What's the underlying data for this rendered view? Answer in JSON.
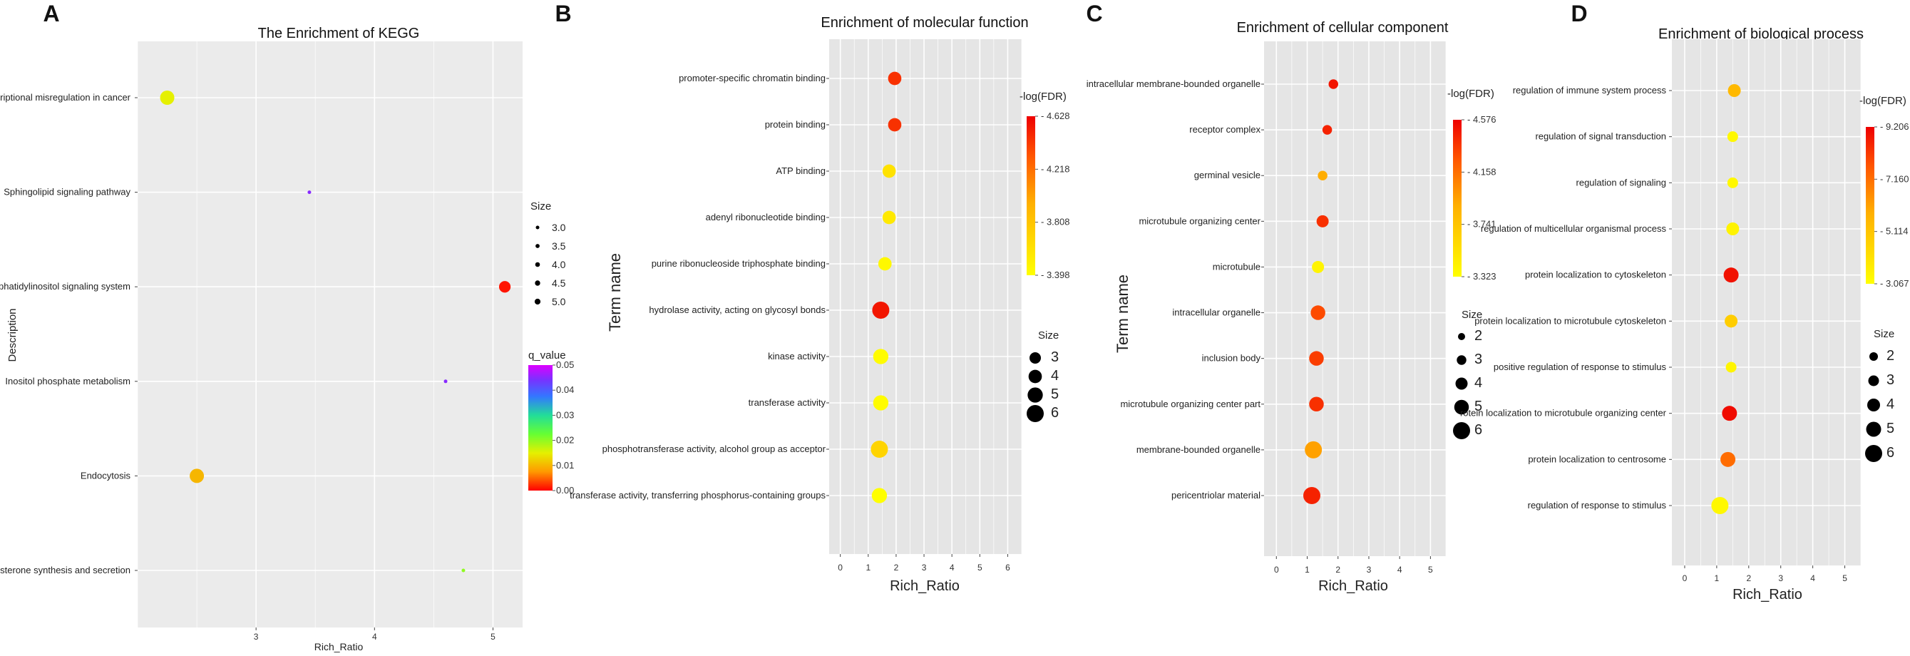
{
  "chart_data": [
    {
      "panel": "A",
      "type": "scatter",
      "title": "The Enrichment of KEGG",
      "xlabel": "Rich_Ratio",
      "ylabel": "Description",
      "xlim": [
        2.0,
        5.25
      ],
      "xticks": [
        3,
        4,
        5
      ],
      "categories": [
        "Transcriptional misregulation in cancer",
        "Sphingolipid signaling pathway",
        "Phosphatidylinositol signaling system",
        "Inositol phosphate metabolism",
        "Endocytosis",
        "Aldosterone synthesis and secretion"
      ],
      "points": [
        {
          "term": "Transcriptional misregulation in cancer",
          "x": 2.25,
          "size": 5.0,
          "color_value": 0.015
        },
        {
          "term": "Sphingolipid signaling pathway",
          "x": 3.45,
          "size": 3.0,
          "color_value": 0.045
        },
        {
          "term": "Phosphatidylinositol signaling system",
          "x": 5.1,
          "size": 4.5,
          "color_value": 0.001
        },
        {
          "term": "Inositol phosphate metabolism",
          "x": 4.6,
          "size": 3.0,
          "color_value": 0.045
        },
        {
          "term": "Endocytosis",
          "x": 2.5,
          "size": 5.0,
          "color_value": 0.01
        },
        {
          "term": "Aldosterone synthesis and secretion",
          "x": 4.75,
          "size": 3.0,
          "color_value": 0.02
        }
      ],
      "size_legend": {
        "title": "Size",
        "values": [
          3.0,
          3.5,
          4.0,
          4.5,
          5.0
        ],
        "labels": [
          "3.0",
          "3.5",
          "4.0",
          "4.5",
          "5.0"
        ]
      },
      "color_legend": {
        "title": "q_value",
        "min": 0.0,
        "max": 0.05,
        "ticks": [
          "0.00",
          "0.01",
          "0.02",
          "0.03",
          "0.04",
          "0.05"
        ],
        "scale": "rainbow"
      }
    },
    {
      "panel": "B",
      "type": "scatter",
      "title": "Enrichment of molecular function",
      "xlabel": "Rich_Ratio",
      "ylabel": "Term name",
      "xlim": [
        -0.4,
        6.5
      ],
      "xticks": [
        0,
        1,
        2,
        3,
        4,
        5,
        6
      ],
      "categories": [
        "promoter-specific chromatin binding",
        "protein binding",
        "ATP binding",
        "adenyl ribonucleotide binding",
        "purine ribonucleoside triphosphate binding",
        "hydrolase activity, acting on glycosyl bonds",
        "kinase activity",
        "transferase activity",
        "phosphotransferase activity, alcohol group as acceptor",
        "transferase activity, transferring phosphorus-containing groups"
      ],
      "points": [
        {
          "term": "promoter-specific chromatin binding",
          "x": 1.95,
          "size": 4,
          "color_value": 4.45
        },
        {
          "term": "protein binding",
          "x": 1.95,
          "size": 4,
          "color_value": 4.45
        },
        {
          "term": "ATP binding",
          "x": 1.75,
          "size": 4,
          "color_value": 3.6
        },
        {
          "term": "adenyl ribonucleotide binding",
          "x": 1.75,
          "size": 4,
          "color_value": 3.55
        },
        {
          "term": "purine ribonucleoside triphosphate binding",
          "x": 1.6,
          "size": 4,
          "color_value": 3.45
        },
        {
          "term": "hydrolase activity, acting on glycosyl bonds",
          "x": 1.45,
          "size": 6,
          "color_value": 4.55
        },
        {
          "term": "kinase activity",
          "x": 1.45,
          "size": 5,
          "color_value": 3.42
        },
        {
          "term": "transferase activity",
          "x": 1.45,
          "size": 5,
          "color_value": 3.42
        },
        {
          "term": "phosphotransferase activity, alcohol group as acceptor",
          "x": 1.4,
          "size": 6,
          "color_value": 3.7
        },
        {
          "term": "transferase activity, transferring phosphorus-containing groups",
          "x": 1.4,
          "size": 5,
          "color_value": 3.4
        }
      ],
      "size_legend": {
        "title": "Size",
        "values": [
          3,
          4,
          5,
          6
        ],
        "labels": [
          "3",
          "4",
          "5",
          "6"
        ]
      },
      "color_legend": {
        "title": "-log(FDR)",
        "min": 3.398,
        "max": 4.628,
        "ticks": [
          "3.398",
          "3.808",
          "4.218",
          "4.628"
        ],
        "scale": "yellow-red"
      }
    },
    {
      "panel": "C",
      "type": "scatter",
      "title": "Enrichment of cellular component",
      "xlabel": "Rich_Ratio",
      "ylabel": "Term name",
      "xlim": [
        -0.4,
        5.5
      ],
      "xticks": [
        0,
        1,
        2,
        3,
        4,
        5
      ],
      "categories": [
        "intracellular membrane-bounded organelle",
        "receptor complex",
        "germinal vesicle",
        "microtubule organizing center",
        "microtubule",
        "intracellular organelle",
        "inclusion body",
        "microtubule organizing center part",
        "membrane-bounded organelle",
        "pericentriolar material"
      ],
      "points": [
        {
          "term": "intracellular membrane-bounded organelle",
          "x": 1.85,
          "size": 3,
          "color_value": 4.5
        },
        {
          "term": "receptor complex",
          "x": 1.65,
          "size": 3,
          "color_value": 4.45
        },
        {
          "term": "germinal vesicle",
          "x": 1.5,
          "size": 3,
          "color_value": 3.9
        },
        {
          "term": "microtubule organizing center",
          "x": 1.5,
          "size": 4,
          "color_value": 4.4
        },
        {
          "term": "microtubule",
          "x": 1.35,
          "size": 4,
          "color_value": 3.4
        },
        {
          "term": "intracellular organelle",
          "x": 1.35,
          "size": 5,
          "color_value": 4.3
        },
        {
          "term": "inclusion body",
          "x": 1.3,
          "size": 5,
          "color_value": 4.35
        },
        {
          "term": "microtubule organizing center part",
          "x": 1.3,
          "size": 5,
          "color_value": 4.4
        },
        {
          "term": "membrane-bounded organelle",
          "x": 1.2,
          "size": 6,
          "color_value": 3.95
        },
        {
          "term": "pericentriolar material",
          "x": 1.15,
          "size": 6,
          "color_value": 4.45
        }
      ],
      "size_legend": {
        "title": "Size",
        "values": [
          2,
          3,
          4,
          5,
          6
        ],
        "labels": [
          "2",
          "3",
          "4",
          "5",
          "6"
        ]
      },
      "color_legend": {
        "title": "-log(FDR)",
        "min": 3.323,
        "max": 4.576,
        "ticks": [
          "3.323",
          "3.741",
          "4.158",
          "4.576"
        ],
        "scale": "yellow-red"
      }
    },
    {
      "panel": "D",
      "type": "scatter",
      "title": "Enrichment of biological process",
      "xlabel": "Rich_Ratio",
      "ylabel": "",
      "xlim": [
        -0.4,
        5.5
      ],
      "xticks": [
        0,
        1,
        2,
        3,
        4,
        5
      ],
      "categories": [
        "regulation of immune system process",
        "regulation of signal transduction",
        "regulation of signaling",
        "regulation of multicellular organismal process",
        "protein localization to cytoskeleton",
        "protein localization to microtubule cytoskeleton",
        "positive regulation of response to stimulus",
        "rotein localization to microtubule organizing center",
        "protein localization to centrosome",
        "regulation of response to stimulus"
      ],
      "points": [
        {
          "term": "regulation of immune system process",
          "x": 1.55,
          "size": 4,
          "color_value": 5.5
        },
        {
          "term": "regulation of signal transduction",
          "x": 1.5,
          "size": 3,
          "color_value": 3.3
        },
        {
          "term": "regulation of signaling",
          "x": 1.5,
          "size": 3,
          "color_value": 3.3
        },
        {
          "term": "regulation of multicellular organismal process",
          "x": 1.5,
          "size": 4,
          "color_value": 3.5
        },
        {
          "term": "protein localization to cytoskeleton",
          "x": 1.45,
          "size": 5,
          "color_value": 8.9
        },
        {
          "term": "protein localization to microtubule cytoskeleton",
          "x": 1.45,
          "size": 4,
          "color_value": 4.8
        },
        {
          "term": "positive regulation of response to stimulus",
          "x": 1.45,
          "size": 3,
          "color_value": 3.4
        },
        {
          "term": "rotein localization to microtubule organizing center",
          "x": 1.4,
          "size": 5,
          "color_value": 9.0
        },
        {
          "term": "protein localization to centrosome",
          "x": 1.35,
          "size": 5,
          "color_value": 7.2
        },
        {
          "term": "regulation of response to stimulus",
          "x": 1.1,
          "size": 6,
          "color_value": 3.3
        }
      ],
      "size_legend": {
        "title": "Size",
        "values": [
          2,
          3,
          4,
          5,
          6
        ],
        "labels": [
          "2",
          "3",
          "4",
          "5",
          "6"
        ]
      },
      "color_legend": {
        "title": "-log(FDR)",
        "min": 3.067,
        "max": 9.206,
        "ticks": [
          "3.067",
          "5.114",
          "7.160",
          "9.206"
        ],
        "scale": "yellow-red"
      }
    }
  ]
}
